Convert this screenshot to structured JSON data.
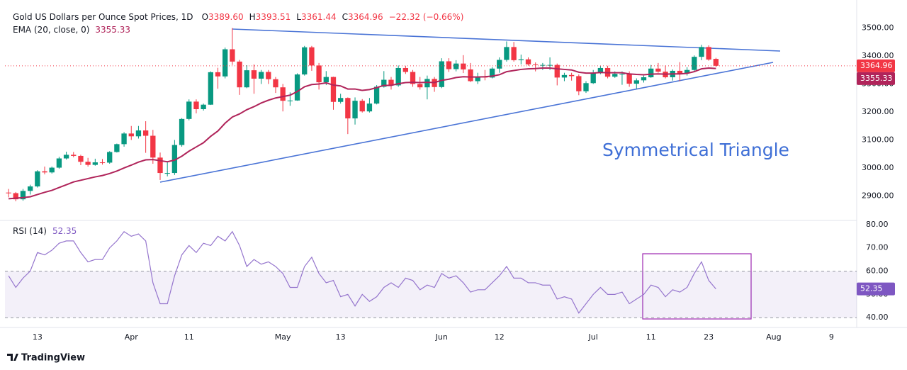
{
  "chart_data": {
    "type": "candlestick",
    "title": "Gold US Dollars per Ounce Spot Prices, 1D",
    "ohlc_header": [
      {
        "key": "O",
        "label": "3389.60"
      },
      {
        "key": "H",
        "label": "3393.51"
      },
      {
        "key": "L",
        "label": "3361.44"
      },
      {
        "key": "C",
        "label": "3364.96"
      }
    ],
    "change_label": "−22.32 (−0.66%)",
    "categories": [
      null,
      null,
      null,
      null,
      "13",
      null,
      null,
      null,
      null,
      null,
      null,
      null,
      null,
      null,
      null,
      null,
      null,
      "Apr",
      null,
      null,
      null,
      null,
      null,
      null,
      null,
      "11",
      null,
      null,
      null,
      null,
      null,
      null,
      null,
      null,
      null,
      null,
      null,
      null,
      "May",
      null,
      null,
      null,
      null,
      null,
      null,
      null,
      "13",
      null,
      null,
      null,
      null,
      null,
      null,
      null,
      null,
      null,
      null,
      null,
      null,
      null,
      "Jun",
      null,
      null,
      null,
      null,
      null,
      null,
      null,
      "12",
      null,
      null,
      null,
      null,
      null,
      null,
      null,
      null,
      null,
      null,
      null,
      null,
      "Jul",
      null,
      null,
      null,
      null,
      null,
      null,
      null,
      "11",
      null,
      null,
      null,
      null,
      null,
      null,
      null,
      "23",
      null,
      null,
      null,
      null,
      null,
      null,
      null,
      null,
      "Aug",
      null,
      null,
      null,
      null,
      null,
      null,
      null,
      "9",
      null,
      null,
      null
    ],
    "open": [
      2912,
      2910,
      2888,
      2918,
      2934,
      2988,
      2984,
      3001,
      3034,
      3047,
      3043,
      3022,
      3011,
      3020,
      3019,
      3057,
      3085,
      3123,
      3113,
      3134,
      3115,
      3037,
      2982,
      2982,
      3082,
      3175,
      3237,
      3210,
      3226,
      3342,
      3327,
      3424,
      3380,
      3288,
      3349,
      3319,
      3343,
      3317,
      3288,
      3240,
      3241,
      3334,
      3431,
      3366,
      3306,
      3325,
      3236,
      3250,
      3177,
      3240,
      3202,
      3230,
      3290,
      3315,
      3295,
      3357,
      3343,
      3300,
      3288,
      3318,
      3289,
      3381,
      3353,
      3373,
      3352,
      3310,
      3326,
      3323,
      3355,
      3386,
      3432,
      3385,
      3388,
      3370,
      3368,
      3368,
      3368,
      3323,
      3332,
      3328,
      3274,
      3303,
      3339,
      3357,
      3326,
      3336,
      3336,
      3301,
      3313,
      3324,
      3355,
      3344,
      3324,
      3347,
      3338,
      3350,
      3397,
      3432,
      3389.6,
      null,
      null,
      null,
      null,
      null,
      null,
      null,
      null,
      null,
      null,
      null,
      null,
      null,
      null,
      null,
      null,
      null,
      null,
      null
    ],
    "high": [
      2925,
      2914,
      2925,
      2940,
      2992,
      3005,
      3005,
      3040,
      3058,
      3057,
      3047,
      3036,
      3033,
      3032,
      3060,
      3087,
      3128,
      3150,
      3150,
      3167,
      3136,
      3055,
      3020,
      3100,
      3178,
      3245,
      3245,
      3230,
      3345,
      3358,
      3430,
      3500,
      3386,
      3367,
      3370,
      3350,
      3350,
      3325,
      3300,
      3270,
      3338,
      3436,
      3436,
      3375,
      3346,
      3326,
      3265,
      3252,
      3252,
      3246,
      3250,
      3296,
      3346,
      3325,
      3366,
      3365,
      3350,
      3325,
      3330,
      3325,
      3392,
      3392,
      3385,
      3403,
      3375,
      3340,
      3350,
      3360,
      3395,
      3452,
      3450,
      3405,
      3395,
      3377,
      3375,
      3395,
      3373,
      3340,
      3340,
      3334,
      3310,
      3350,
      3365,
      3365,
      3345,
      3345,
      3345,
      3320,
      3330,
      3368,
      3375,
      3366,
      3352,
      3378,
      3360,
      3402,
      3440,
      3438,
      3393.51,
      null,
      null,
      null,
      null,
      null,
      null,
      null,
      null,
      null,
      null,
      null,
      null,
      null,
      null,
      null,
      null,
      null,
      null,
      null
    ],
    "low": [
      2895,
      2881,
      2883,
      2905,
      2930,
      2977,
      2980,
      2997,
      3030,
      3038,
      3010,
      3005,
      3008,
      3012,
      3015,
      3055,
      3076,
      3100,
      3105,
      3054,
      3015,
      2957,
      2970,
      2975,
      3076,
      3170,
      3195,
      3205,
      3225,
      3283,
      3320,
      3368,
      3261,
      3285,
      3265,
      3300,
      3300,
      3268,
      3202,
      3222,
      3240,
      3330,
      3347,
      3280,
      3296,
      3208,
      3230,
      3121,
      3155,
      3198,
      3198,
      3227,
      3287,
      3280,
      3290,
      3336,
      3290,
      3280,
      3245,
      3272,
      3285,
      3343,
      3345,
      3339,
      3307,
      3300,
      3313,
      3320,
      3340,
      3380,
      3380,
      3370,
      3365,
      3345,
      3350,
      3350,
      3295,
      3310,
      3312,
      3260,
      3268,
      3300,
      3335,
      3320,
      3322,
      3297,
      3290,
      3283,
      3305,
      3322,
      3340,
      3320,
      3312,
      3310,
      3330,
      3345,
      3385,
      3383,
      3361.44,
      null,
      null,
      null,
      null,
      null,
      null,
      null,
      null,
      null,
      null,
      null,
      null,
      null,
      null,
      null,
      null,
      null,
      null,
      null
    ],
    "close": [
      2910,
      2888,
      2918,
      2934,
      2988,
      2984,
      3001,
      3034,
      3047,
      3043,
      3022,
      3011,
      3020,
      3019,
      3057,
      3085,
      3123,
      3113,
      3134,
      3115,
      3037,
      2982,
      2982,
      3082,
      3175,
      3237,
      3210,
      3226,
      3342,
      3327,
      3424,
      3380,
      3288,
      3349,
      3319,
      3343,
      3317,
      3288,
      3240,
      3241,
      3334,
      3431,
      3366,
      3306,
      3325,
      3236,
      3250,
      3177,
      3240,
      3202,
      3230,
      3290,
      3315,
      3295,
      3357,
      3343,
      3300,
      3288,
      3318,
      3289,
      3381,
      3353,
      3373,
      3352,
      3310,
      3326,
      3323,
      3355,
      3386,
      3432,
      3385,
      3388,
      3370,
      3368,
      3368,
      3368,
      3323,
      3332,
      3328,
      3274,
      3303,
      3339,
      3357,
      3326,
      3336,
      3336,
      3301,
      3313,
      3324,
      3355,
      3344,
      3324,
      3347,
      3338,
      3350,
      3397,
      3432,
      3387.28,
      3364.96,
      null,
      null,
      null,
      null,
      null,
      null,
      null,
      null,
      null,
      null,
      null,
      null,
      null,
      null,
      null,
      null,
      null,
      null,
      null
    ],
    "up_color": "#089981",
    "down_color": "#f23645",
    "ylim": [
      2815,
      3600
    ],
    "yticks": [
      {
        "value": 2900,
        "label": "2900.00"
      },
      {
        "value": 3000,
        "label": "3000.00"
      },
      {
        "value": 3100,
        "label": "3100.00"
      },
      {
        "value": 3200,
        "label": "3200.00"
      },
      {
        "value": 3300,
        "label": "3300.00"
      },
      {
        "value": 3400,
        "label": "3400.00"
      },
      {
        "value": 3500,
        "label": "3500.00"
      }
    ],
    "overlays": [
      {
        "name": "EMA (20, close, 0)",
        "color": "#b0245a",
        "values": [
          2890,
          2892,
          2894,
          2897,
          2905,
          2913,
          2920,
          2930,
          2940,
          2950,
          2956,
          2962,
          2968,
          2973,
          2980,
          2989,
          3000,
          3010,
          3021,
          3029,
          3030,
          3026,
          3022,
          3028,
          3042,
          3060,
          3075,
          3090,
          3113,
          3132,
          3160,
          3182,
          3193,
          3208,
          3219,
          3232,
          3242,
          3250,
          3255,
          3260,
          3273,
          3290,
          3298,
          3300,
          3304,
          3296,
          3293,
          3282,
          3282,
          3277,
          3280,
          3287,
          3295,
          3295,
          3301,
          3305,
          3306,
          3305,
          3306,
          3305,
          3313,
          3317,
          3323,
          3326,
          3325,
          3325,
          3326,
          3328,
          3333,
          3344,
          3348,
          3352,
          3354,
          3355,
          3357,
          3357,
          3354,
          3352,
          3350,
          3342,
          3339,
          3339,
          3341,
          3340,
          3340,
          3340,
          3336,
          3334,
          3333,
          3335,
          3336,
          3335,
          3336,
          3336,
          3338,
          3344,
          3354,
          3357,
          3355.33,
          null,
          null,
          null,
          null,
          null,
          null,
          null,
          null,
          null,
          null,
          null,
          null,
          null,
          null,
          null,
          null,
          null,
          null,
          null
        ]
      }
    ],
    "annotation": "Symmetrical Triangle",
    "rsi": {
      "name": "RSI (14)",
      "color": "#9575cd",
      "values": [
        58,
        53,
        57,
        60,
        68,
        67,
        69,
        72,
        73,
        73,
        68,
        64,
        65,
        65,
        70,
        73,
        77,
        75,
        76,
        73,
        55,
        46,
        46,
        58,
        67,
        71,
        68,
        72,
        71,
        75,
        73,
        77,
        71,
        62,
        65,
        63,
        64,
        62,
        59,
        53,
        53,
        62,
        66,
        59,
        55,
        56,
        49,
        50,
        45,
        50,
        47,
        49,
        53,
        55,
        53,
        57,
        56,
        52,
        54,
        53,
        59,
        57,
        58,
        55,
        51,
        52,
        52,
        55,
        58,
        62,
        57,
        57,
        55,
        55,
        54,
        54,
        48,
        49,
        48,
        42,
        46,
        50,
        53,
        50,
        50,
        51,
        46,
        48,
        50,
        54,
        53,
        49,
        52,
        51,
        53,
        59,
        64,
        56,
        52.35,
        null,
        null,
        null,
        null,
        null,
        null,
        null,
        null,
        null,
        null,
        null,
        null,
        null,
        null,
        null,
        null,
        null,
        null,
        null
      ],
      "ylim": [
        37,
        81.5
      ],
      "yticks": [
        {
          "value": 40,
          "label": "40.00"
        },
        {
          "value": 50,
          "label": "50.00"
        },
        {
          "value": 60,
          "label": "60.00"
        },
        {
          "value": 70,
          "label": "70.00"
        },
        {
          "value": 80,
          "label": "80.00"
        }
      ],
      "band": [
        40,
        60
      ]
    },
    "brand": "TradingView"
  }
}
